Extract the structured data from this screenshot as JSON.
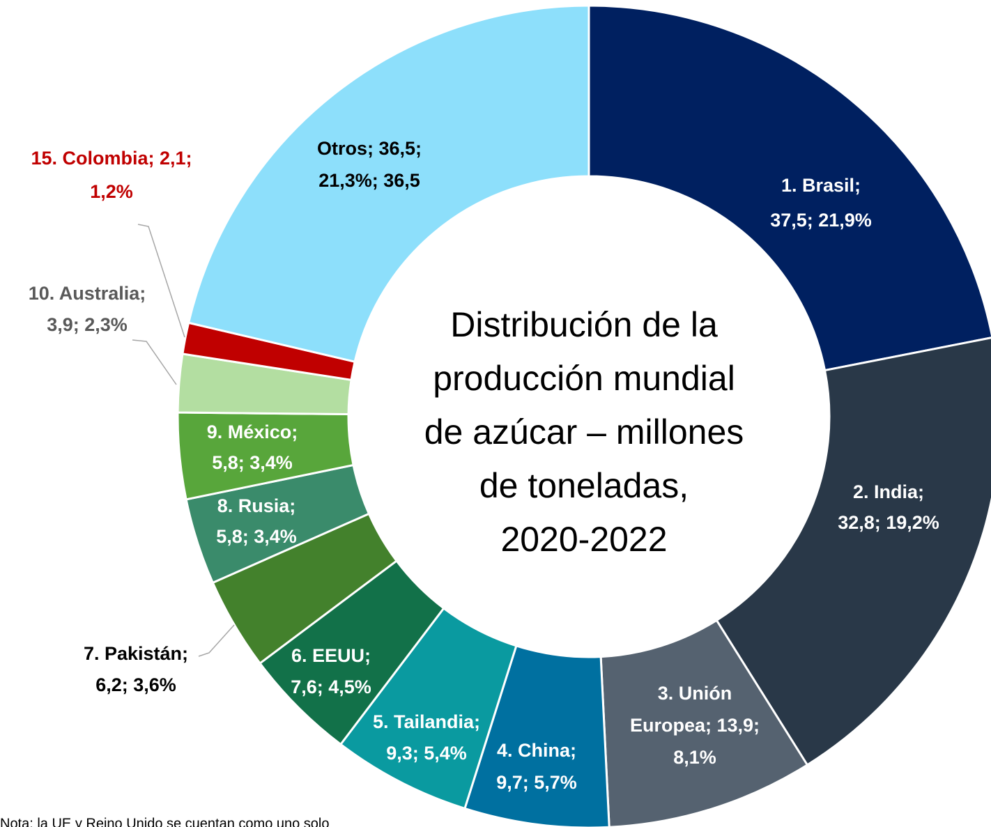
{
  "chart_data": {
    "type": "donut",
    "title": [
      "Distribución de la",
      "producción mundial",
      "de azúcar – millones",
      "de toneladas,",
      "2020-2022"
    ],
    "values": [
      37.5,
      32.8,
      13.9,
      9.7,
      9.3,
      7.6,
      6.2,
      5.8,
      5.8,
      3.9,
      2.1,
      36.5
    ],
    "value_labels": [
      [
        "1. Brasil;",
        "37,5; 21,9%"
      ],
      [
        "2. India;",
        "32,8; 19,2%"
      ],
      [
        "3. Unión",
        "Europea; 13,9;",
        "8,1%"
      ],
      [
        "4. China;",
        "9,7; 5,7%"
      ],
      [
        "5. Tailandia;",
        "9,3; 5,4%"
      ],
      [
        "6. EEUU;",
        "7,6; 4,5%"
      ],
      [
        "7. Pakistán;",
        "6,2; 3,6%"
      ],
      [
        "8. Rusia;",
        "5,8; 3,4%"
      ],
      [
        "9. México;",
        "5,8; 3,4%"
      ],
      [
        "10. Australia;",
        "3,9; 2,3%"
      ],
      [
        "15. Colombia; 2,1;",
        "1,2%"
      ],
      [
        "Otros; 36,5;",
        "21,3%; 36,5"
      ]
    ],
    "colors": [
      "#002060",
      "#293848",
      "#556270",
      "#0070a0",
      "#0a9aa0",
      "#127149",
      "#43812c",
      "#3a8b6b",
      "#58a63b",
      "#b3dea1",
      "#c00000",
      "#8ddffb"
    ],
    "label_colors": [
      "#ffffff",
      "#ffffff",
      "#ffffff",
      "#ffffff",
      "#ffffff",
      "#ffffff",
      "#000000",
      "#ffffff",
      "#ffffff",
      "#595959",
      "#c00000",
      "#000000"
    ],
    "note": "Nota: la UE y Reino Unido se cuentan como uno solo"
  }
}
